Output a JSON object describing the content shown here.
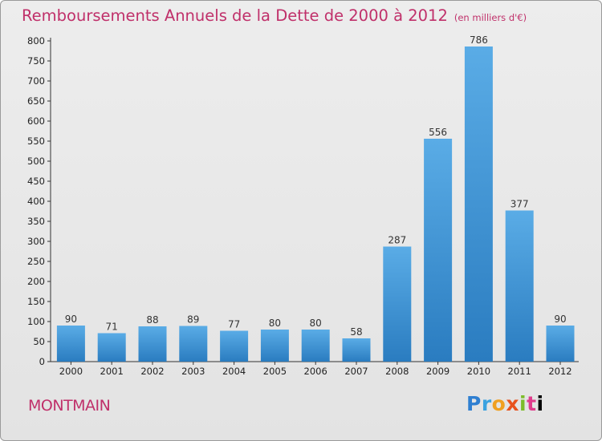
{
  "title": "Remboursements Annuels de la Dette de 2000 à 2012",
  "subtitle": "(en milliers d'€)",
  "commune": "MONTMAIN",
  "logo": [
    "P",
    "r",
    "o",
    "x",
    "i",
    "t",
    "i"
  ],
  "colors": {
    "title": "#c0306a",
    "bar_light": "#5aace6",
    "bar_dark": "#2a7cc0"
  },
  "chart_data": {
    "type": "bar",
    "title": "Remboursements Annuels de la Dette de 2000 à 2012",
    "subtitle": "(en milliers d'€)",
    "categories": [
      "2000",
      "2001",
      "2002",
      "2003",
      "2004",
      "2005",
      "2006",
      "2007",
      "2008",
      "2009",
      "2010",
      "2011",
      "2012"
    ],
    "values": [
      90,
      71,
      88,
      89,
      77,
      80,
      80,
      58,
      287,
      556,
      786,
      377,
      90
    ],
    "ylim": [
      0,
      800
    ],
    "yticks": [
      0,
      50,
      100,
      150,
      200,
      250,
      300,
      350,
      400,
      450,
      500,
      550,
      600,
      650,
      700,
      750,
      800
    ],
    "grid": false,
    "legend": "none"
  }
}
